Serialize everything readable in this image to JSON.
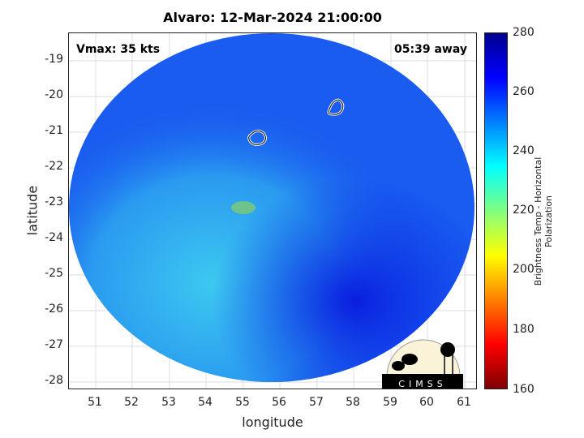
{
  "title": "Alvaro: 12-Mar-2024 21:00:00",
  "vmax": "Vmax: 35 kts",
  "away": "05:39 away",
  "xlabel": "longitude",
  "ylabel": "latitude",
  "xticks": [
    "51",
    "52",
    "53",
    "54",
    "55",
    "56",
    "57",
    "58",
    "59",
    "60",
    "61"
  ],
  "yticks": [
    "-19",
    "-20",
    "-21",
    "-22",
    "-23",
    "-24",
    "-25",
    "-26",
    "-27",
    "-28"
  ],
  "colorbar": {
    "label": "Brightness Temp - Horizontal Polarization",
    "ticks": [
      "280",
      "260",
      "240",
      "220",
      "200",
      "180",
      "160"
    ],
    "range": [
      160,
      280
    ],
    "colormap": "jet"
  },
  "logo": {
    "text": "CIMSS"
  },
  "colors": {
    "disk_main": "#1a5cf0",
    "disk_light": "#2aa8f0",
    "disk_dark": "#0a2ee0"
  }
}
